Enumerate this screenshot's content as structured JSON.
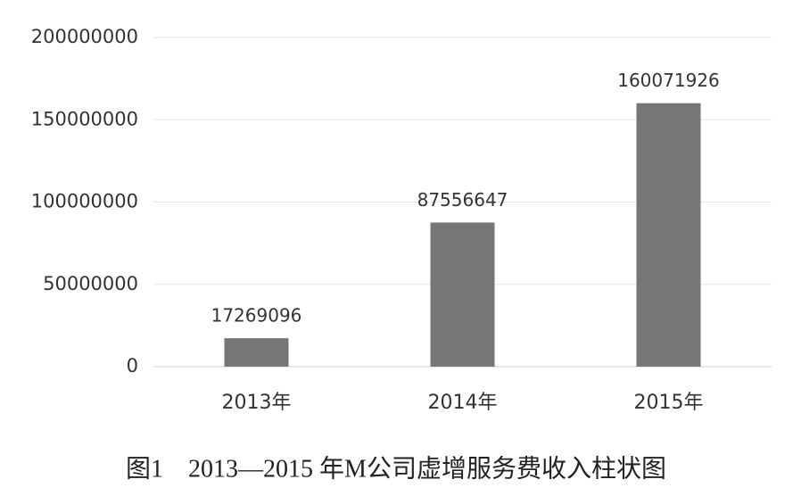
{
  "chart_data": {
    "type": "bar",
    "title": "图1　2013—2015 年M公司虚增服务费收入柱状图",
    "categories": [
      "2013年",
      "2014年",
      "2015年"
    ],
    "values": [
      17269096,
      87556647,
      160071926
    ],
    "color": "#767676",
    "ylim": [
      0,
      200000000
    ],
    "yticks": [
      0,
      50000000,
      100000000,
      150000000,
      200000000
    ],
    "grid": true
  }
}
